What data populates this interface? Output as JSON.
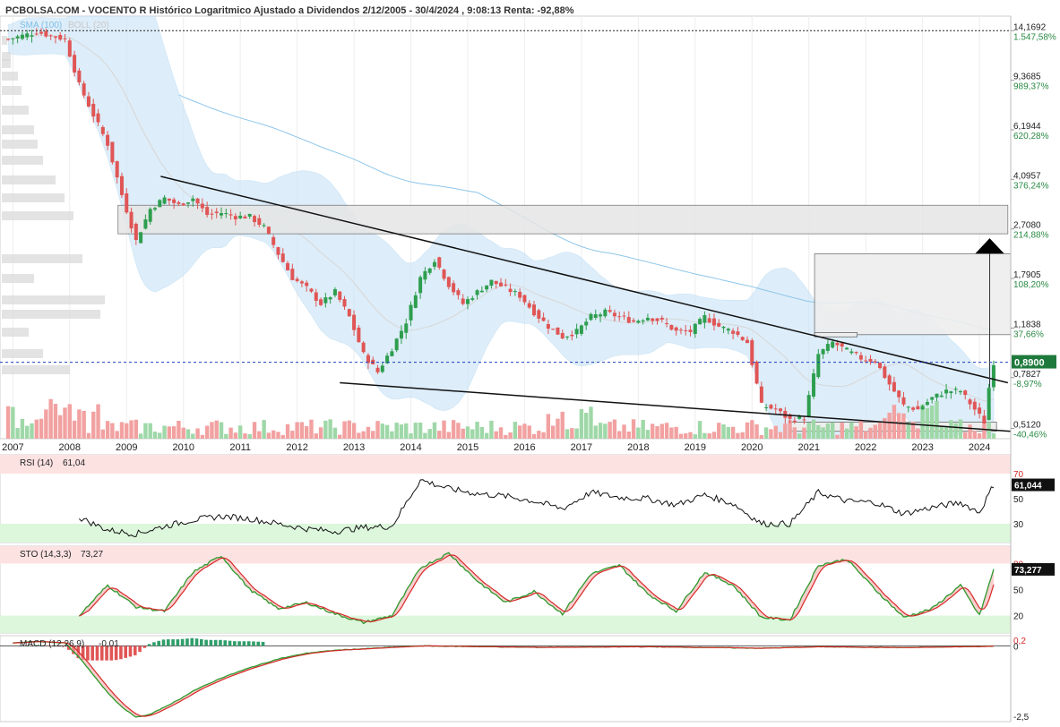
{
  "header": {
    "title": "PCBOLSA.COM - VOCENTO R Histórico Logaritmico Ajustado a Dividendos 2/12/2005 - 30/4/2024 , 9:08:13 Renta: -92,88%"
  },
  "legend": {
    "sma": "SMA (100)",
    "boll": "BOLL (20)"
  },
  "colors": {
    "up": "#2e9e4f",
    "down": "#e05555",
    "bollinger_fill": "#cfe6f7",
    "sma_line": "#8ec6ea",
    "channel_box": "#e6e6e6",
    "price_line": "#1d3fbf"
  },
  "chart_data": [
    {
      "type": "line",
      "panel": "price",
      "scale": "log",
      "x_ticks": [
        "2007",
        "2008",
        "2009",
        "2010",
        "2011",
        "2012",
        "2013",
        "2014",
        "2015",
        "2016",
        "2017",
        "2018",
        "2019",
        "2020",
        "2021",
        "2022",
        "2023",
        "2024"
      ],
      "y_ticks": [
        {
          "value": "14,1692",
          "pct": "1.547,58%"
        },
        {
          "value": "9,3685",
          "pct": "989,37%"
        },
        {
          "value": "6,1944",
          "pct": "620,28%"
        },
        {
          "value": "4,0957",
          "pct": "376,24%"
        },
        {
          "value": "2,7080",
          "pct": "214,88%"
        },
        {
          "value": "1,7905",
          "pct": "108,20%"
        },
        {
          "value": "1,1838",
          "pct": "37,66%"
        },
        {
          "value": "0,7827",
          "pct": "-8,97%"
        },
        {
          "value": "0,5120",
          "pct": "-40,46%"
        }
      ],
      "current_price": "0,8900",
      "ylim": [
        0.47,
        16
      ],
      "price_path": [
        [
          "2006-12",
          13.2
        ],
        [
          "2007-06",
          14.0
        ],
        [
          "2007-12",
          13.2
        ],
        [
          "2008-03",
          9.0
        ],
        [
          "2008-06",
          7.0
        ],
        [
          "2008-09",
          5.5
        ],
        [
          "2008-12",
          3.6
        ],
        [
          "2009-03",
          2.45
        ],
        [
          "2009-06",
          3.2
        ],
        [
          "2009-09",
          3.5
        ],
        [
          "2009-12",
          3.3
        ],
        [
          "2010-03",
          3.5
        ],
        [
          "2010-06",
          3.05
        ],
        [
          "2010-09",
          3.1
        ],
        [
          "2010-12",
          3.0
        ],
        [
          "2011-03",
          3.0
        ],
        [
          "2011-06",
          2.75
        ],
        [
          "2011-09",
          2.2
        ],
        [
          "2011-12",
          1.8
        ],
        [
          "2012-03",
          1.65
        ],
        [
          "2012-06",
          1.45
        ],
        [
          "2012-09",
          1.6
        ],
        [
          "2012-12",
          1.3
        ],
        [
          "2013-03",
          0.95
        ],
        [
          "2013-06",
          0.82
        ],
        [
          "2013-09",
          1.0
        ],
        [
          "2013-12",
          1.25
        ],
        [
          "2014-03",
          1.8
        ],
        [
          "2014-06",
          2.1
        ],
        [
          "2014-09",
          1.7
        ],
        [
          "2014-12",
          1.45
        ],
        [
          "2015-03",
          1.6
        ],
        [
          "2015-06",
          1.75
        ],
        [
          "2015-09",
          1.65
        ],
        [
          "2015-12",
          1.55
        ],
        [
          "2016-03",
          1.35
        ],
        [
          "2016-06",
          1.2
        ],
        [
          "2016-09",
          1.1
        ],
        [
          "2016-12",
          1.15
        ],
        [
          "2017-03",
          1.3
        ],
        [
          "2017-06",
          1.35
        ],
        [
          "2017-09",
          1.3
        ],
        [
          "2017-12",
          1.25
        ],
        [
          "2018-03",
          1.3
        ],
        [
          "2018-06",
          1.25
        ],
        [
          "2018-09",
          1.15
        ],
        [
          "2018-12",
          1.15
        ],
        [
          "2019-03",
          1.3
        ],
        [
          "2019-06",
          1.2
        ],
        [
          "2019-09",
          1.15
        ],
        [
          "2019-12",
          1.05
        ],
        [
          "2020-03",
          0.62
        ],
        [
          "2020-06",
          0.6
        ],
        [
          "2020-09",
          0.55
        ],
        [
          "2020-12",
          0.56
        ],
        [
          "2021-03",
          0.95
        ],
        [
          "2021-06",
          1.05
        ],
        [
          "2021-09",
          0.98
        ],
        [
          "2021-12",
          0.92
        ],
        [
          "2022-03",
          0.9
        ],
        [
          "2022-06",
          0.74
        ],
        [
          "2022-09",
          0.62
        ],
        [
          "2022-12",
          0.6
        ],
        [
          "2023-03",
          0.66
        ],
        [
          "2023-06",
          0.7
        ],
        [
          "2023-09",
          0.7
        ],
        [
          "2023-12",
          0.6
        ],
        [
          "2024-02",
          0.54
        ],
        [
          "2024-03",
          0.72
        ],
        [
          "2024-04",
          0.89
        ]
      ]
    },
    {
      "type": "line",
      "panel": "RSI",
      "label": "RSI (14)",
      "value_label": "61,04",
      "current": "61,044",
      "y_ticks": [
        "70",
        "50",
        "30"
      ],
      "ylim": [
        15,
        85
      ],
      "series": [
        {
          "name": "RSI (14)",
          "values": [
            [
              "2008-03",
              35
            ],
            [
              "2008-09",
              25
            ],
            [
              "2009-03",
              22
            ],
            [
              "2009-09",
              28
            ],
            [
              "2010-03",
              33
            ],
            [
              "2010-09",
              36
            ],
            [
              "2011-03",
              34
            ],
            [
              "2011-09",
              30
            ],
            [
              "2012-03",
              26
            ],
            [
              "2012-09",
              24
            ],
            [
              "2013-03",
              27
            ],
            [
              "2013-09",
              28
            ],
            [
              "2014-03",
              65
            ],
            [
              "2014-09",
              58
            ],
            [
              "2015-03",
              54
            ],
            [
              "2015-09",
              52
            ],
            [
              "2016-03",
              48
            ],
            [
              "2016-09",
              42
            ],
            [
              "2017-03",
              55
            ],
            [
              "2017-09",
              51
            ],
            [
              "2018-03",
              50
            ],
            [
              "2018-09",
              45
            ],
            [
              "2019-03",
              53
            ],
            [
              "2019-09",
              46
            ],
            [
              "2020-03",
              30
            ],
            [
              "2020-09",
              30
            ],
            [
              "2021-03",
              55
            ],
            [
              "2021-09",
              48
            ],
            [
              "2022-03",
              47
            ],
            [
              "2022-09",
              38
            ],
            [
              "2023-03",
              43
            ],
            [
              "2023-09",
              47
            ],
            [
              "2024-01",
              39
            ],
            [
              "2024-04",
              61
            ]
          ]
        }
      ]
    },
    {
      "type": "line",
      "panel": "STO",
      "label": "STO (14,3,3)",
      "value_label": "73,27",
      "current": "73,277",
      "y_ticks": [
        "80",
        "50",
        "20"
      ],
      "ylim": [
        0,
        100
      ],
      "series": [
        {
          "name": "STO (14,3,3)",
          "values": [
            [
              "2008-03",
              20
            ],
            [
              "2008-09",
              55
            ],
            [
              "2009-03",
              30
            ],
            [
              "2009-09",
              25
            ],
            [
              "2010-03",
              70
            ],
            [
              "2010-09",
              89
            ],
            [
              "2011-03",
              50
            ],
            [
              "2011-09",
              28
            ],
            [
              "2012-03",
              35
            ],
            [
              "2012-09",
              22
            ],
            [
              "2013-03",
              12
            ],
            [
              "2013-09",
              20
            ],
            [
              "2014-03",
              75
            ],
            [
              "2014-09",
              92
            ],
            [
              "2015-03",
              60
            ],
            [
              "2015-09",
              35
            ],
            [
              "2016-03",
              48
            ],
            [
              "2016-09",
              22
            ],
            [
              "2017-03",
              68
            ],
            [
              "2017-09",
              78
            ],
            [
              "2018-03",
              45
            ],
            [
              "2018-09",
              25
            ],
            [
              "2019-03",
              70
            ],
            [
              "2019-09",
              55
            ],
            [
              "2020-03",
              18
            ],
            [
              "2020-09",
              15
            ],
            [
              "2021-03",
              78
            ],
            [
              "2021-09",
              85
            ],
            [
              "2022-03",
              50
            ],
            [
              "2022-09",
              18
            ],
            [
              "2023-03",
              28
            ],
            [
              "2023-09",
              55
            ],
            [
              "2024-01",
              20
            ],
            [
              "2024-04",
              73
            ]
          ]
        }
      ]
    },
    {
      "type": "line",
      "panel": "MACD",
      "label": "MACD (12,26,9)",
      "value_label": "-0,01",
      "y_ticks": [
        "0,2",
        "0",
        "-2,5"
      ],
      "ylim": [
        -2.6,
        0.35
      ],
      "series": [
        {
          "name": "MACD (12,26,9)",
          "values": [
            [
              "2007-01",
              0.1
            ],
            [
              "2007-06",
              0.15
            ],
            [
              "2007-12",
              0.1
            ],
            [
              "2008-03",
              -0.4
            ],
            [
              "2008-06",
              -1.0
            ],
            [
              "2008-09",
              -1.6
            ],
            [
              "2008-12",
              -2.1
            ],
            [
              "2009-03",
              -2.45
            ],
            [
              "2009-06",
              -2.35
            ],
            [
              "2009-09",
              -2.1
            ],
            [
              "2009-12",
              -1.85
            ],
            [
              "2010-03",
              -1.55
            ],
            [
              "2010-09",
              -1.1
            ],
            [
              "2011-03",
              -0.75
            ],
            [
              "2011-09",
              -0.45
            ],
            [
              "2012-03",
              -0.25
            ],
            [
              "2012-09",
              -0.15
            ],
            [
              "2013-03",
              -0.1
            ],
            [
              "2014-03",
              0.0
            ],
            [
              "2016-03",
              -0.05
            ],
            [
              "2018-03",
              -0.03
            ],
            [
              "2020-03",
              -0.08
            ],
            [
              "2021-03",
              -0.03
            ],
            [
              "2022-09",
              -0.06
            ],
            [
              "2024-04",
              -0.01
            ]
          ]
        }
      ]
    }
  ]
}
